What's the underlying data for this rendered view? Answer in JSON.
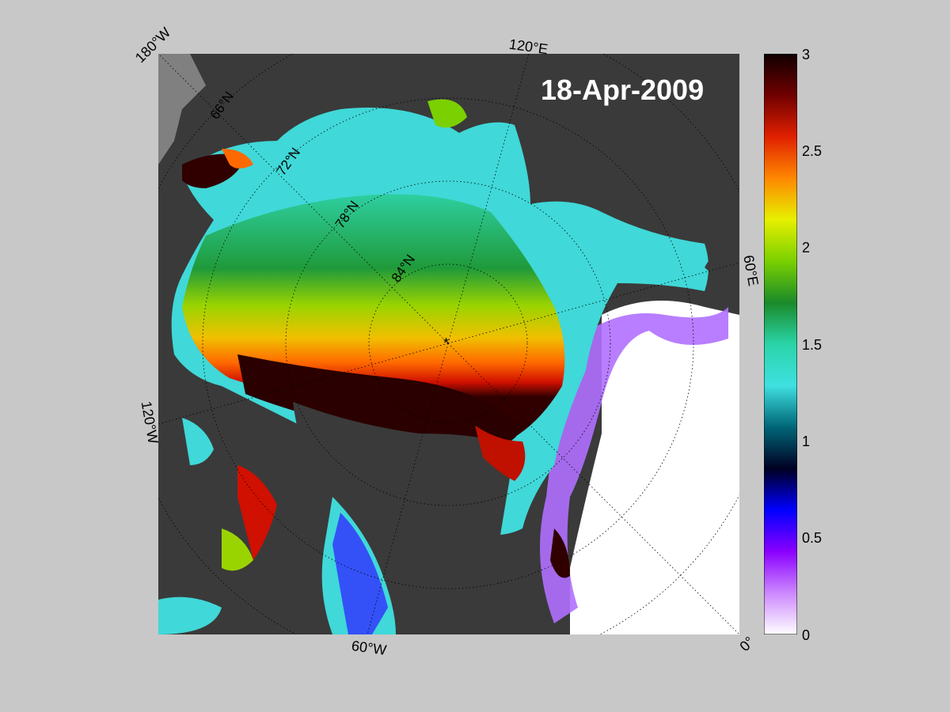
{
  "date_stamp": "18-Apr-2009",
  "map": {
    "meridian_labels": {
      "lon_180w": "180°W",
      "lon_120e": "120°E",
      "lon_60e": "60°E",
      "lon_120w": "120°W",
      "lon_60w": "60°W",
      "lon_0": "0°"
    },
    "latitude_labels": {
      "lat_66n": "66°N",
      "lat_72n": "72°N",
      "lat_78n": "78°N",
      "lat_84n": "84°N"
    },
    "pole_marker": "*"
  },
  "colorbar": {
    "min": 0,
    "max": 3,
    "ticks": [
      "3",
      "2.5",
      "2",
      "1.5",
      "1",
      "0.5",
      "0"
    ],
    "colors": [
      "#ffffff",
      "#cc88ff",
      "#8a00ff",
      "#0000ff",
      "#000022",
      "#006677",
      "#3fe0e0",
      "#2ad4a8",
      "#1a8a2a",
      "#7ad000",
      "#e6f000",
      "#ff8800",
      "#e02000",
      "#700000",
      "#100000"
    ]
  },
  "colors": {
    "figure_bg": "#c8c8c8",
    "land": "#3a3a3a",
    "open_water": "#ffffff",
    "date_text": "#ffffff"
  }
}
